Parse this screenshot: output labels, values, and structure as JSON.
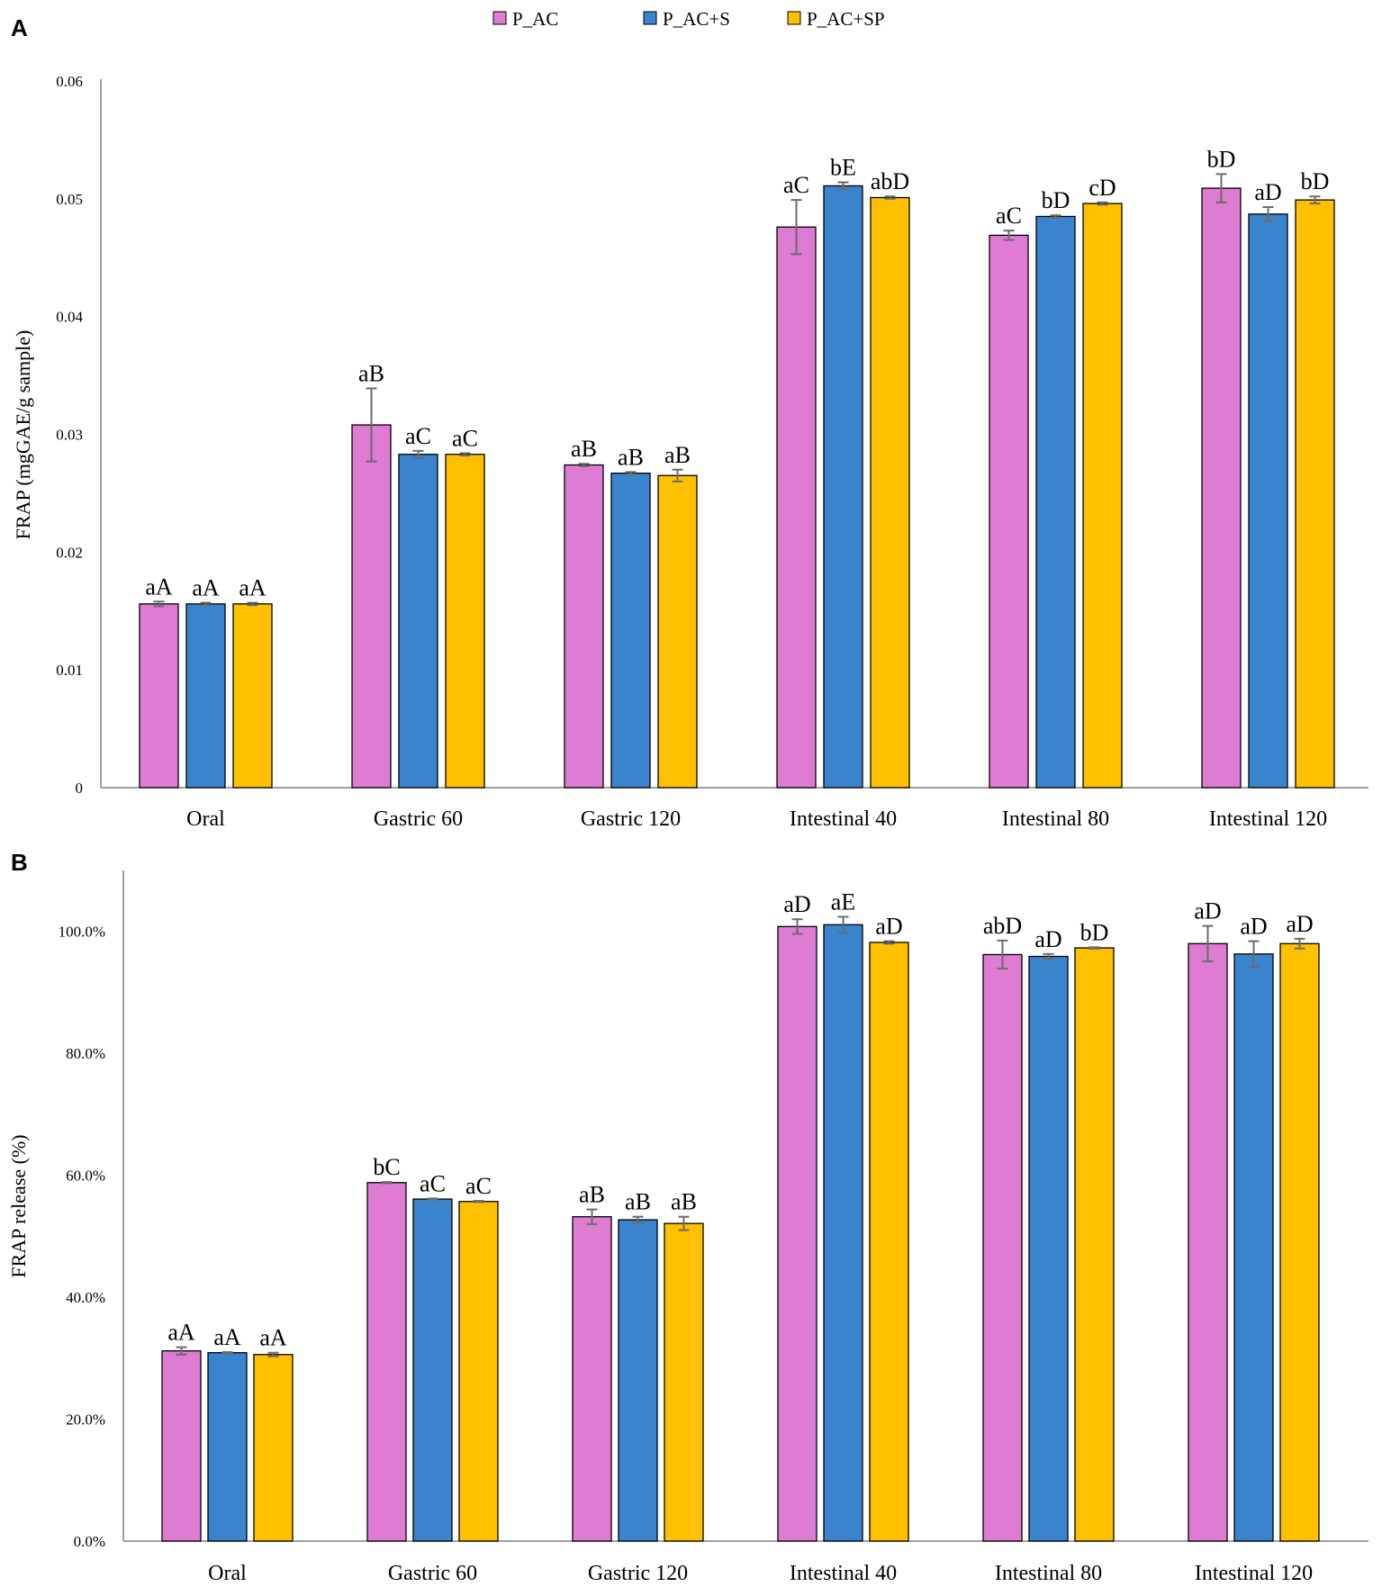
{
  "legend": [
    {
      "name": "P_AC",
      "color": "#DE7BD2"
    },
    {
      "name": "P_AC+S",
      "color": "#3A84CE"
    },
    {
      "name": "P_AC+SP",
      "color": "#FFC000"
    }
  ],
  "chart_data": [
    {
      "panel": "A",
      "type": "bar",
      "ylabel": "FRAP (mgGAE/g sample)",
      "xlabel": "",
      "ylim": [
        0,
        0.06
      ],
      "yticks": [
        0,
        0.01,
        0.02,
        0.03,
        0.04,
        0.05,
        0.06
      ],
      "ytick_labels": [
        "0",
        "0.01",
        "0.02",
        "0.03",
        "0.04",
        "0.05",
        "0.06"
      ],
      "categories": [
        "Oral",
        "Gastric 60",
        "Gastric 120",
        "Intestinal 40",
        "Intestinal 80",
        "Intestinal 120"
      ],
      "series": [
        {
          "name": "P_AC",
          "values": [
            0.0156,
            0.0308,
            0.0274,
            0.0476,
            0.0469,
            0.0509
          ],
          "errors": [
            0.0002,
            0.0031,
            0.0001,
            0.0023,
            0.0004,
            0.0012
          ],
          "labels": [
            "aA",
            "aB",
            "aB",
            "aC",
            "aC",
            "bD"
          ]
        },
        {
          "name": "P_AC+S",
          "values": [
            0.0156,
            0.0283,
            0.0267,
            0.0511,
            0.0485,
            0.0487
          ],
          "errors": [
            0.0001,
            0.0003,
            0.0001,
            0.0003,
            0.0001,
            0.0006
          ],
          "labels": [
            "aA",
            "aC",
            "aB",
            "bE",
            "bD",
            "aD"
          ]
        },
        {
          "name": "P_AC+SP",
          "values": [
            0.0156,
            0.0283,
            0.0265,
            0.0501,
            0.0496,
            0.0499
          ],
          "errors": [
            0.0001,
            0.0001,
            0.0005,
            0.0001,
            0.0001,
            0.0003
          ],
          "labels": [
            "aA",
            "aC",
            "aB",
            "abD",
            "cD",
            "bD"
          ]
        }
      ]
    },
    {
      "panel": "B",
      "type": "bar",
      "ylabel": "FRAP release (%)",
      "xlabel": "",
      "ylim": [
        0,
        110
      ],
      "yticks": [
        0,
        20,
        40,
        60,
        80,
        100
      ],
      "ytick_labels": [
        "0.0%",
        "20.0%",
        "40.0%",
        "60.0%",
        "80.0%",
        "100.0%"
      ],
      "categories": [
        "Oral",
        "Gastric 60",
        "Gastric 120",
        "Intestinal 40",
        "Intestinal 80",
        "Intestinal 120"
      ],
      "series": [
        {
          "name": "P_AC",
          "values": [
            31.2,
            58.8,
            53.2,
            100.8,
            96.2,
            98.0
          ],
          "errors": [
            0.6,
            0.1,
            1.2,
            1.2,
            2.3,
            2.9
          ],
          "labels": [
            "aA",
            "bC",
            "aB",
            "aD",
            "abD",
            "aD"
          ]
        },
        {
          "name": "P_AC+S",
          "values": [
            30.9,
            56.1,
            52.7,
            101.1,
            95.9,
            96.3
          ],
          "errors": [
            0.1,
            0.1,
            0.5,
            1.3,
            0.4,
            2.1
          ],
          "labels": [
            "aA",
            "aC",
            "aB",
            "aE",
            "aD",
            "aD"
          ]
        },
        {
          "name": "P_AC+SP",
          "values": [
            30.6,
            55.7,
            52.1,
            98.2,
            97.3,
            98.0
          ],
          "errors": [
            0.3,
            0.1,
            1.1,
            0.2,
            0.1,
            0.8
          ],
          "labels": [
            "aA",
            "aC",
            "aB",
            "aD",
            "bD",
            "aD"
          ]
        }
      ]
    }
  ]
}
